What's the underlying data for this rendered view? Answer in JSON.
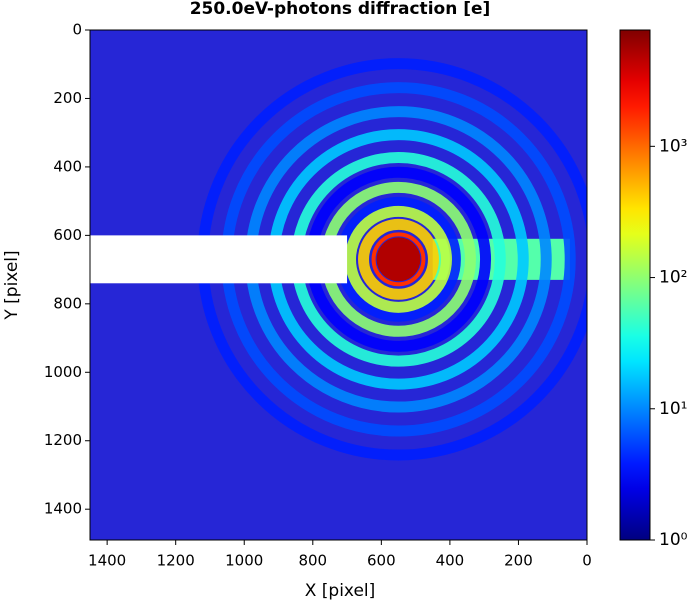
{
  "chart_data": {
    "type": "heatmap",
    "title": "250.0eV-photons diffraction [e]",
    "xlabel": "X [pixel]",
    "ylabel": "Y [pixel]",
    "xlim": [
      1450,
      0
    ],
    "ylim": [
      1490,
      0
    ],
    "xticks": [
      1400,
      1200,
      1000,
      800,
      600,
      400,
      200,
      0
    ],
    "yticks": [
      0,
      200,
      400,
      600,
      800,
      1000,
      1200,
      1400
    ],
    "colorbar": {
      "scale": "log",
      "clim": [
        1,
        7700
      ],
      "ticks": [
        {
          "value": 1,
          "label": "10⁰"
        },
        {
          "value": 10,
          "label": "10¹"
        },
        {
          "value": 100,
          "label": "10²"
        },
        {
          "value": 1000,
          "label": "10³"
        }
      ]
    },
    "center": [
      550,
      670
    ],
    "background": 2,
    "streak": {
      "x": [
        450,
        50
      ],
      "y": [
        610,
        730
      ],
      "value": 60
    },
    "rings": [
      {
        "radius": 571,
        "value": 4
      },
      {
        "radius": 501,
        "value": 6
      },
      {
        "radius": 431,
        "value": 10
      },
      {
        "radius": 364,
        "value": 18
      },
      {
        "radius": 297,
        "value": 40
      },
      {
        "radius": 254,
        "value": 3
      },
      {
        "radius": 210,
        "value": 100
      },
      {
        "radius": 166,
        "value": 4
      },
      {
        "radius": 140,
        "value": 150
      },
      {
        "radius": 102,
        "value": 400
      }
    ],
    "core": {
      "radius": 64,
      "value": 5000
    },
    "mask": {
      "x": [
        1450,
        700
      ],
      "y": [
        600,
        740
      ]
    }
  }
}
